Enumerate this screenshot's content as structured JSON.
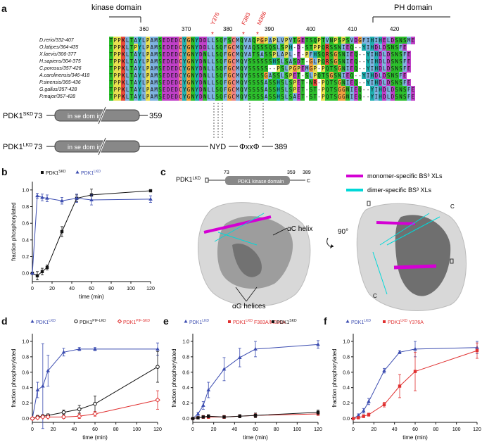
{
  "panels": {
    "a": "a",
    "b": "b",
    "c": "c",
    "d": "d",
    "e": "e",
    "f": "f"
  },
  "panel_a": {
    "kinase_domain": "kinase domain",
    "ph_domain": "PH domain",
    "ruler": [
      "360",
      "370",
      "380",
      "390",
      "400",
      "410",
      "420"
    ],
    "markers": [
      "Y376",
      "F383",
      "M386"
    ],
    "species": [
      "D.rerio/332-407",
      "O.latipes/364-435",
      "X.laevis/306-377",
      "H.sapiens/304-375",
      "C.porosus/357-426",
      "A.carolinensis/346-418",
      "P.sinensis/365-436",
      "G.gallus/357-428",
      "P.major/357-428"
    ],
    "sequences": [
      "TPPKLTAYLPAMSEDEDCYGNYDDLLSQFSCMQVAQPGPAPLVPVTGETSQPTVNPSPSVDGFIHIHELDSNSME",
      "TPPKLTPYLPAMSEDEDCYGNYDDLLSQFGCMQVAQSSSQSLSPH-D-STPPQRSSNIEQ--YIHDLDSNSFE",
      "TPPKLTAYLPAMSEDEDCYGNYDNLLSQFGCMQVATSASSPLAPL-E-PFHSQRSGSNIEQ--YIHDLDSNSFE",
      "TPPKLTAYLPAMSEDEDCYGNYDNLLSQFGCMQVSSSSSSHSLSASDT-GLPQRSGSNIEQ--YIHDLDSNSFE",
      "TPPKLTAYLPAMSEDEDCYGNYDNLLSQFGCMQVSSSSS--PSLPGPEMGP-PQTSGNIEQ--YIHDLDSNSFE",
      "TPPKLTAYLPAMSEDEDCYGNYDNLLSQFGCMQVSSSSGASSLSPET-SLPQTSGSNIEQ--YIHDLDSNSFE",
      "TPPKLTAYLPAMSEDEDCYGNYDNLLSQFGCMQVSSSSASSHSLSPET-NR-PQTSGNIEQ--YIHDLDSNSFE",
      "TPPKLTAYLPAMSEDEDCYGNYDNLLSQFGCMQVSSSSASSHSLSPET-ST-PQTSGGNIEQ--YIHDLDSNSFE",
      "TPPKLTAYLPAMSEDEDCYGNYDNLLSQFGCMQVSSSSASSHSLSAET-ST-PQTSGGNIEQ--YIHDLDSNSFE"
    ],
    "constructs": [
      {
        "name": "PDK1",
        "sup": "SKD",
        "start": "73",
        "domain_text": "in se   dom in",
        "end": "359"
      },
      {
        "name": "PDK1",
        "sup": "LKD",
        "start": "73",
        "domain_text": "in se   dom in",
        "motif1": "NYD",
        "motif2": "ΦxxΦ",
        "end": "389"
      }
    ]
  },
  "panel_c": {
    "construct_label": "PDK1",
    "construct_sup": "LKD",
    "start": "73",
    "mid": "359",
    "end": "389",
    "domain_label": "PDK1 kinase domain",
    "c_term": "C",
    "legend": [
      "monomer-specific BS³ XLs",
      "dimer-specific BS³ XLs"
    ],
    "legend_colors": [
      "#d400d4",
      "#00d8d8"
    ],
    "ac_helix": "αC helix",
    "ag_helices": "αG helices",
    "rotation": "90°",
    "c_label": "C"
  },
  "chart_data": [
    {
      "id": "b",
      "type": "line",
      "xlabel": "time (min)",
      "ylabel": "fraction phosphorylated",
      "xlim": [
        0,
        120
      ],
      "ylim": [
        -0.1,
        1.1
      ],
      "xticks": [
        0,
        20,
        40,
        60,
        80,
        100,
        120
      ],
      "yticks": [
        0.0,
        0.2,
        0.4,
        0.6,
        0.8,
        1.0
      ],
      "series": [
        {
          "name": "PDK1",
          "sup": "SKD",
          "color": "#111111",
          "marker": "square",
          "x": [
            0,
            5,
            10,
            15,
            30,
            45,
            60,
            120
          ],
          "y": [
            0.0,
            -0.03,
            0.02,
            0.07,
            0.5,
            0.9,
            0.94,
            0.99
          ],
          "err": [
            0,
            0.05,
            0.04,
            0.03,
            0.06,
            0.04,
            0.07,
            0.0
          ]
        },
        {
          "name": "PDK1",
          "sup": "LKD",
          "color": "#3b4cb0",
          "marker": "triangle",
          "x": [
            0,
            5,
            10,
            15,
            30,
            45,
            60,
            120
          ],
          "y": [
            0.0,
            0.93,
            0.91,
            0.9,
            0.87,
            0.9,
            0.88,
            0.89
          ],
          "err": [
            0,
            0.03,
            0.04,
            0.04,
            0.04,
            0.05,
            0.06,
            0.04
          ]
        }
      ]
    },
    {
      "id": "d",
      "type": "line",
      "xlabel": "time (min)",
      "ylabel": "fraction phosphorylated",
      "xlim": [
        0,
        120
      ],
      "ylim": [
        -0.05,
        1.1
      ],
      "xticks": [
        0,
        20,
        40,
        60,
        80,
        100,
        120
      ],
      "yticks": [
        0.0,
        0.2,
        0.4,
        0.6,
        0.8,
        1.0
      ],
      "series": [
        {
          "name": "PDK1",
          "sup": "LKD",
          "color": "#3b4cb0",
          "marker": "triangle",
          "x": [
            0,
            5,
            10,
            15,
            30,
            45,
            60,
            120
          ],
          "y": [
            0.0,
            0.37,
            0.42,
            0.62,
            0.86,
            0.9,
            0.9,
            0.9
          ],
          "err": [
            0,
            0.1,
            0.55,
            0.2,
            0.05,
            0.02,
            0.02,
            0.08
          ]
        },
        {
          "name": "PDK1",
          "sup": "PIF-LKD",
          "color": "#111111",
          "marker": "circle",
          "x": [
            0,
            5,
            10,
            15,
            30,
            45,
            60,
            120
          ],
          "y": [
            0.0,
            0.02,
            0.03,
            0.04,
            0.08,
            0.12,
            0.19,
            0.67
          ],
          "err": [
            0,
            0.02,
            0.02,
            0.02,
            0.03,
            0.05,
            0.1,
            0.2
          ]
        },
        {
          "name": "PDK1",
          "sup": "PIF-SKD",
          "color": "#e03030",
          "marker": "diamond",
          "x": [
            0,
            5,
            10,
            15,
            30,
            45,
            60,
            120
          ],
          "y": [
            0.0,
            0.01,
            0.02,
            0.02,
            0.02,
            0.03,
            0.06,
            0.24
          ],
          "err": [
            0,
            0.01,
            0.01,
            0.01,
            0.02,
            0.03,
            0.03,
            0.12
          ]
        }
      ]
    },
    {
      "id": "e",
      "type": "line",
      "xlabel": "time (min)",
      "ylabel": "fraction phosphorylated",
      "xlim": [
        0,
        120
      ],
      "ylim": [
        -0.05,
        1.1
      ],
      "xticks": [
        0,
        20,
        40,
        60,
        80,
        100,
        120
      ],
      "yticks": [
        0.0,
        0.2,
        0.4,
        0.6,
        0.8,
        1.0
      ],
      "series": [
        {
          "name": "PDK1",
          "sup": "LKD",
          "color": "#3b4cb0",
          "marker": "triangle",
          "x": [
            0,
            5,
            10,
            15,
            30,
            45,
            60,
            120
          ],
          "y": [
            0.0,
            0.06,
            0.17,
            0.37,
            0.64,
            0.79,
            0.9,
            0.96
          ],
          "err": [
            0,
            0.02,
            0.05,
            0.1,
            0.15,
            0.12,
            0.1,
            0.05
          ]
        },
        {
          "name": "PDK1",
          "sup": "LKD",
          "extra": "F383A/M386A",
          "color": "#e03030",
          "marker": "square",
          "x": [
            0,
            5,
            10,
            15,
            30,
            45,
            60,
            120
          ],
          "y": [
            0.0,
            0.01,
            0.02,
            0.02,
            0.02,
            0.03,
            0.04,
            0.06
          ],
          "err": [
            0,
            0.01,
            0.02,
            0.02,
            0.02,
            0.02,
            0.02,
            0.02
          ]
        },
        {
          "name": "PDK1",
          "sup": "SKD",
          "color": "#111111",
          "marker": "square",
          "x": [
            0,
            5,
            10,
            15,
            30,
            45,
            60,
            120
          ],
          "y": [
            0.0,
            0.01,
            0.02,
            0.03,
            0.02,
            0.03,
            0.04,
            0.08
          ],
          "err": [
            0,
            0.01,
            0.01,
            0.02,
            0.01,
            0.02,
            0.03,
            0.03
          ]
        }
      ]
    },
    {
      "id": "f",
      "type": "line",
      "xlabel": "time (min)",
      "ylabel": "fraction phosphorylated",
      "xlim": [
        0,
        120
      ],
      "ylim": [
        -0.05,
        1.1
      ],
      "xticks": [
        0,
        20,
        40,
        60,
        80,
        100,
        120
      ],
      "yticks": [
        0.0,
        0.2,
        0.4,
        0.6,
        0.8,
        1.0
      ],
      "series": [
        {
          "name": "PDK1",
          "sup": "LKD",
          "color": "#3b4cb0",
          "marker": "triangle",
          "x": [
            0,
            5,
            10,
            15,
            30,
            45,
            60,
            120
          ],
          "y": [
            0.0,
            0.04,
            0.1,
            0.22,
            0.62,
            0.86,
            0.9,
            0.92
          ],
          "err": [
            0,
            0.02,
            0.03,
            0.04,
            0.03,
            0.02,
            0.1,
            0.08
          ]
        },
        {
          "name": "PDK1",
          "sup": "LKD",
          "extra": "Y376A",
          "color": "#e03030",
          "marker": "square",
          "x": [
            0,
            5,
            10,
            15,
            30,
            45,
            60,
            120
          ],
          "y": [
            0.0,
            0.01,
            0.03,
            0.05,
            0.18,
            0.42,
            0.61,
            0.88
          ],
          "err": [
            0,
            0.01,
            0.02,
            0.02,
            0.03,
            0.15,
            0.25,
            0.1
          ]
        }
      ]
    }
  ]
}
